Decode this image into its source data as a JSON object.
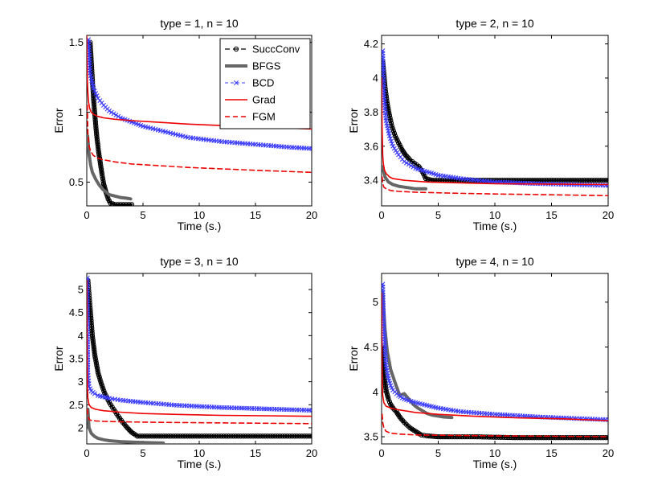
{
  "figure": {
    "legend_labels": [
      "SuccConv",
      "BFGS",
      "BCD",
      "Grad",
      "FGM"
    ]
  },
  "chart_data": [
    {
      "type": "line",
      "title": "type = 1, n = 10",
      "xlabel": "Time (s.)",
      "ylabel": "Error",
      "xlim": [
        0,
        20
      ],
      "ylim": [
        0.33,
        1.55
      ],
      "xticks": [
        0,
        5,
        10,
        15,
        20
      ],
      "yticks": [
        0.5,
        1,
        1.5
      ],
      "ytick_labels": [
        "0.5",
        "1",
        "1.5"
      ],
      "legend": "top-right",
      "series": [
        {
          "name": "SuccConv",
          "x": [
            0.3,
            0.45,
            0.6,
            0.75,
            0.9,
            1.05,
            1.2,
            1.35,
            1.5,
            1.7,
            1.9,
            2.1,
            2.5,
            3,
            3.5,
            4
          ],
          "y": [
            1.5,
            1.3,
            1.1,
            0.95,
            0.82,
            0.72,
            0.64,
            0.56,
            0.49,
            0.43,
            0.38,
            0.35,
            0.34,
            0.34,
            0.34,
            0.34
          ]
        },
        {
          "name": "BFGS",
          "x": [
            0.08,
            0.2,
            0.35,
            0.5,
            0.8,
            1.1,
            1.4,
            1.7,
            2.0,
            2.5,
            3.0,
            3.5,
            3.9
          ],
          "y": [
            0.83,
            0.7,
            0.62,
            0.57,
            0.52,
            0.48,
            0.45,
            0.43,
            0.41,
            0.4,
            0.39,
            0.385,
            0.38
          ]
        },
        {
          "name": "BCD",
          "x": [
            0.15,
            0.3,
            0.6,
            1,
            1.5,
            2,
            3,
            4,
            5,
            7,
            9,
            12,
            15,
            18,
            20
          ],
          "y": [
            1.52,
            1.28,
            1.17,
            1.1,
            1.05,
            1.01,
            0.96,
            0.93,
            0.9,
            0.86,
            0.82,
            0.79,
            0.77,
            0.75,
            0.74
          ]
        },
        {
          "name": "Grad",
          "x": [
            0,
            0.03,
            0.06,
            0.1,
            0.15,
            0.25,
            0.4,
            0.6,
            1,
            1.5,
            2.5,
            4,
            6,
            9,
            12,
            15,
            20
          ],
          "y": [
            1.55,
            1.35,
            1.22,
            1.14,
            1.08,
            1.03,
            1.0,
            0.985,
            0.97,
            0.96,
            0.95,
            0.94,
            0.93,
            0.915,
            0.905,
            0.895,
            0.88
          ]
        },
        {
          "name": "FGM",
          "x": [
            0.05,
            0.1,
            0.2,
            0.35,
            0.6,
            1,
            1.5,
            2.5,
            4,
            6,
            9,
            12,
            15,
            20
          ],
          "y": [
            1.05,
            0.85,
            0.76,
            0.72,
            0.69,
            0.67,
            0.66,
            0.645,
            0.63,
            0.62,
            0.605,
            0.595,
            0.585,
            0.57
          ]
        }
      ]
    },
    {
      "type": "line",
      "title": "type = 2, n = 10",
      "xlabel": "Time (s.)",
      "ylabel": "Error",
      "xlim": [
        0,
        20
      ],
      "ylim": [
        3.25,
        4.25
      ],
      "xticks": [
        0,
        5,
        10,
        15,
        20
      ],
      "yticks": [
        3.4,
        3.6,
        3.8,
        4,
        4.2
      ],
      "ytick_labels": [
        "3.4",
        "3.6",
        "3.8",
        "4",
        "4.2"
      ],
      "legend": "",
      "series": [
        {
          "name": "SuccConv",
          "x": [
            0.1,
            0.3,
            0.5,
            0.7,
            0.9,
            1.2,
            1.5,
            1.8,
            2.1,
            2.5,
            2.9,
            3.3,
            3.6,
            3.9,
            4.5,
            6,
            10,
            15,
            20
          ],
          "y": [
            4.1,
            3.95,
            3.85,
            3.78,
            3.72,
            3.66,
            3.62,
            3.58,
            3.55,
            3.52,
            3.5,
            3.48,
            3.45,
            3.41,
            3.4,
            3.4,
            3.4,
            3.4,
            3.4
          ]
        },
        {
          "name": "BFGS",
          "x": [
            0.1,
            0.3,
            0.6,
            1,
            1.5,
            2,
            2.5,
            3,
            3.5,
            3.9
          ],
          "y": [
            3.48,
            3.42,
            3.39,
            3.375,
            3.365,
            3.36,
            3.355,
            3.35,
            3.35,
            3.35
          ]
        },
        {
          "name": "BCD",
          "x": [
            0.1,
            0.2,
            0.4,
            0.7,
            1,
            1.5,
            2,
            3,
            4,
            5,
            7,
            10,
            14,
            20
          ],
          "y": [
            4.16,
            3.9,
            3.75,
            3.66,
            3.6,
            3.55,
            3.51,
            3.47,
            3.45,
            3.43,
            3.41,
            3.39,
            3.38,
            3.37
          ]
        },
        {
          "name": "Grad",
          "x": [
            0,
            0.05,
            0.1,
            0.15,
            0.25,
            0.4,
            0.7,
            1,
            2,
            4,
            7,
            10,
            15,
            20
          ],
          "y": [
            4.0,
            3.7,
            3.55,
            3.5,
            3.46,
            3.44,
            3.42,
            3.41,
            3.4,
            3.39,
            3.385,
            3.38,
            3.378,
            3.375
          ]
        },
        {
          "name": "FGM",
          "x": [
            0.05,
            0.1,
            0.2,
            0.4,
            0.8,
            1.5,
            3,
            6,
            10,
            15,
            20
          ],
          "y": [
            3.42,
            3.38,
            3.36,
            3.35,
            3.34,
            3.335,
            3.33,
            3.325,
            3.32,
            3.315,
            3.31
          ]
        }
      ]
    },
    {
      "type": "line",
      "title": "type = 3, n = 10",
      "xlabel": "Time (s.)",
      "ylabel": "Error",
      "xlim": [
        0,
        20
      ],
      "ylim": [
        1.65,
        5.35
      ],
      "xticks": [
        0,
        5,
        10,
        15,
        20
      ],
      "yticks": [
        2,
        2.5,
        3,
        3.5,
        4,
        4.5,
        5
      ],
      "ytick_labels": [
        "2",
        "2.5",
        "3",
        "3.5",
        "4",
        "4.5",
        "5"
      ],
      "legend": "",
      "series": [
        {
          "name": "SuccConv",
          "x": [
            0.1,
            0.3,
            0.5,
            0.7,
            1,
            1.3,
            1.6,
            2,
            2.4,
            2.8,
            3.2,
            3.6,
            4,
            4.5,
            6,
            10,
            15,
            20
          ],
          "y": [
            5.2,
            4.6,
            4.0,
            3.6,
            3.2,
            2.95,
            2.75,
            2.55,
            2.4,
            2.25,
            2.12,
            2.0,
            1.9,
            1.82,
            1.82,
            1.82,
            1.82,
            1.82
          ]
        },
        {
          "name": "BFGS",
          "x": [
            0.1,
            0.2,
            0.4,
            0.7,
            1,
            1.5,
            2,
            3,
            4,
            5,
            6,
            6.8
          ],
          "y": [
            2.4,
            2.0,
            1.88,
            1.81,
            1.77,
            1.74,
            1.72,
            1.7,
            1.69,
            1.68,
            1.675,
            1.67
          ]
        },
        {
          "name": "BCD",
          "x": [
            0.05,
            0.1,
            0.2,
            0.4,
            0.7,
            1,
            2,
            3,
            5,
            8,
            12,
            16,
            20
          ],
          "y": [
            5.25,
            3.2,
            2.9,
            2.8,
            2.74,
            2.7,
            2.64,
            2.6,
            2.55,
            2.49,
            2.44,
            2.41,
            2.38
          ]
        },
        {
          "name": "Grad",
          "x": [
            0,
            0.03,
            0.06,
            0.1,
            0.2,
            0.4,
            0.8,
            1.5,
            3,
            5,
            8,
            12,
            16,
            20
          ],
          "y": [
            5.2,
            3.5,
            2.9,
            2.65,
            2.5,
            2.44,
            2.4,
            2.37,
            2.34,
            2.31,
            2.29,
            2.27,
            2.26,
            2.25
          ]
        },
        {
          "name": "FGM",
          "x": [
            0.05,
            0.1,
            0.2,
            0.4,
            0.8,
            1.5,
            3,
            6,
            10,
            15,
            20
          ],
          "y": [
            2.4,
            2.25,
            2.18,
            2.16,
            2.15,
            2.14,
            2.13,
            2.12,
            2.11,
            2.1,
            2.09
          ]
        }
      ]
    },
    {
      "type": "line",
      "title": "type = 4, n = 10",
      "xlabel": "Time (s.)",
      "ylabel": "Error",
      "xlim": [
        0,
        20
      ],
      "ylim": [
        3.42,
        5.32
      ],
      "xticks": [
        0,
        5,
        10,
        15,
        20
      ],
      "yticks": [
        3.5,
        4,
        4.5,
        5
      ],
      "ytick_labels": [
        "3.5",
        "4",
        "4.5",
        "5"
      ],
      "legend": "",
      "series": [
        {
          "name": "SuccConv",
          "x": [
            0.1,
            0.2,
            0.4,
            0.6,
            0.8,
            1,
            1.3,
            1.6,
            2,
            2.5,
            3,
            3.5,
            4,
            5,
            6,
            8,
            12,
            16,
            20
          ],
          "y": [
            4.5,
            4.2,
            4.02,
            3.92,
            3.86,
            3.82,
            3.78,
            3.72,
            3.66,
            3.6,
            3.56,
            3.52,
            3.51,
            3.5,
            3.5,
            3.5,
            3.49,
            3.49,
            3.49
          ]
        },
        {
          "name": "BFGS",
          "x": [
            0.1,
            0.3,
            0.5,
            0.8,
            1.2,
            1.6,
            2,
            2.4,
            2.8,
            3.2,
            3.6,
            4,
            4.5,
            5,
            5.5,
            6.2
          ],
          "y": [
            5.1,
            4.7,
            4.45,
            4.25,
            4.1,
            3.96,
            3.98,
            3.92,
            3.86,
            3.82,
            3.79,
            3.76,
            3.74,
            3.73,
            3.72,
            3.715
          ]
        },
        {
          "name": "BCD",
          "x": [
            0.1,
            0.2,
            0.4,
            0.6,
            0.8,
            1,
            1.5,
            2,
            3,
            4,
            5,
            7,
            10,
            14,
            20
          ],
          "y": [
            5.2,
            4.7,
            4.3,
            4.15,
            4.07,
            4.02,
            3.96,
            3.92,
            3.88,
            3.85,
            3.82,
            3.78,
            3.75,
            3.72,
            3.69
          ]
        },
        {
          "name": "Grad",
          "x": [
            0,
            0.03,
            0.06,
            0.1,
            0.2,
            0.4,
            0.8,
            1.5,
            3,
            5,
            8,
            12,
            16,
            20
          ],
          "y": [
            5.1,
            4.4,
            4.1,
            3.96,
            3.88,
            3.84,
            3.82,
            3.8,
            3.77,
            3.75,
            3.73,
            3.71,
            3.7,
            3.68
          ]
        },
        {
          "name": "FGM",
          "x": [
            0.05,
            0.1,
            0.2,
            0.4,
            0.8,
            1.5,
            3,
            6,
            10,
            15,
            20
          ],
          "y": [
            3.75,
            3.66,
            3.6,
            3.56,
            3.54,
            3.53,
            3.52,
            3.515,
            3.51,
            3.505,
            3.5
          ]
        }
      ]
    }
  ]
}
